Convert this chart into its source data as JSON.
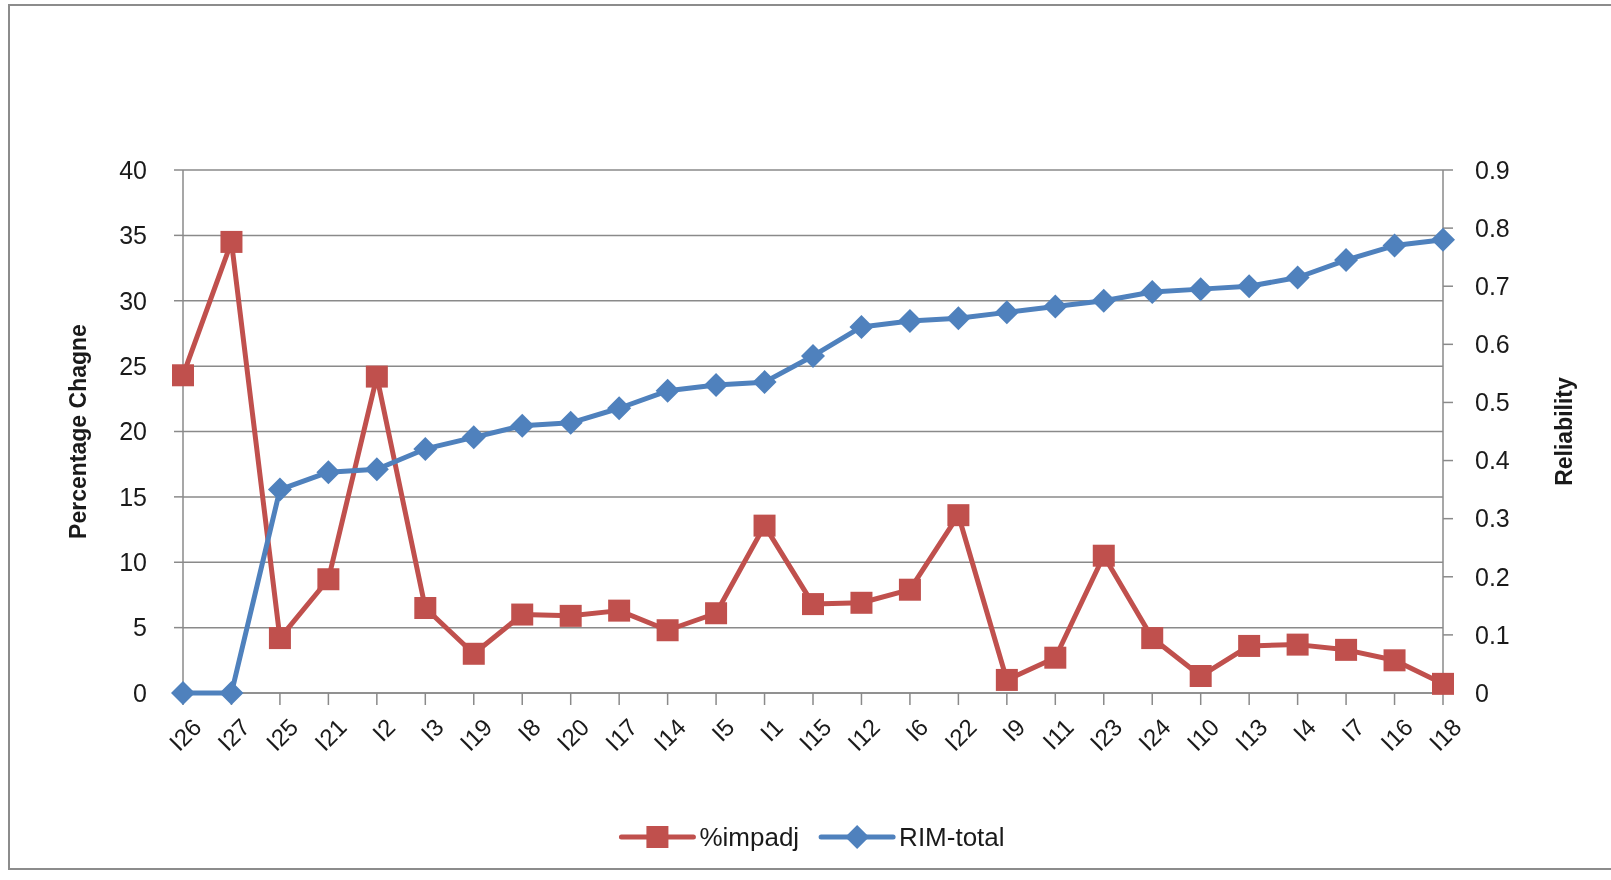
{
  "chart_data": {
    "type": "line",
    "ylabel": "Percentage Chagne",
    "y2label": "Reliability",
    "categories": [
      "I26",
      "I27",
      "I25",
      "I21",
      "I2",
      "I3",
      "I19",
      "I8",
      "I20",
      "I17",
      "I14",
      "I5",
      "I1",
      "I15",
      "I12",
      "I6",
      "I22",
      "I9",
      "I11",
      "I23",
      "I24",
      "I10",
      "I13",
      "I4",
      "I7",
      "I16",
      "I18"
    ],
    "series": [
      {
        "name": "%impadj",
        "color": "#c0504d",
        "marker": "square",
        "values": [
          24.3,
          34.5,
          4.2,
          8.7,
          24.2,
          6.5,
          3.0,
          6.0,
          5.9,
          6.3,
          4.8,
          6.1,
          12.8,
          6.8,
          6.9,
          7.9,
          13.6,
          1.0,
          2.7,
          10.5,
          4.2,
          1.3,
          3.6,
          3.7,
          3.3,
          2.5,
          0.7
        ]
      },
      {
        "name": "RIM-total",
        "color": "#4f81bd",
        "marker": "diamond",
        "axis": "y2",
        "values": [
          0,
          0,
          0.35,
          0.38,
          0.385,
          0.42,
          0.44,
          0.46,
          0.465,
          0.49,
          0.52,
          0.53,
          0.535,
          0.58,
          0.63,
          0.64,
          0.645,
          0.655,
          0.665,
          0.675,
          0.69,
          0.695,
          0.7,
          0.715,
          0.745,
          0.77,
          0.78
        ]
      }
    ],
    "ylim": [
      0,
      40
    ],
    "yticks": [
      0,
      5,
      10,
      15,
      20,
      25,
      30,
      35,
      40
    ],
    "y2lim": [
      0,
      0.9
    ],
    "y2ticks": [
      0,
      0.1,
      0.2,
      0.3,
      0.4,
      0.5,
      0.6,
      0.7,
      0.8,
      0.9
    ],
    "grid": "y",
    "legend": "bottom",
    "line_style": "solid"
  }
}
